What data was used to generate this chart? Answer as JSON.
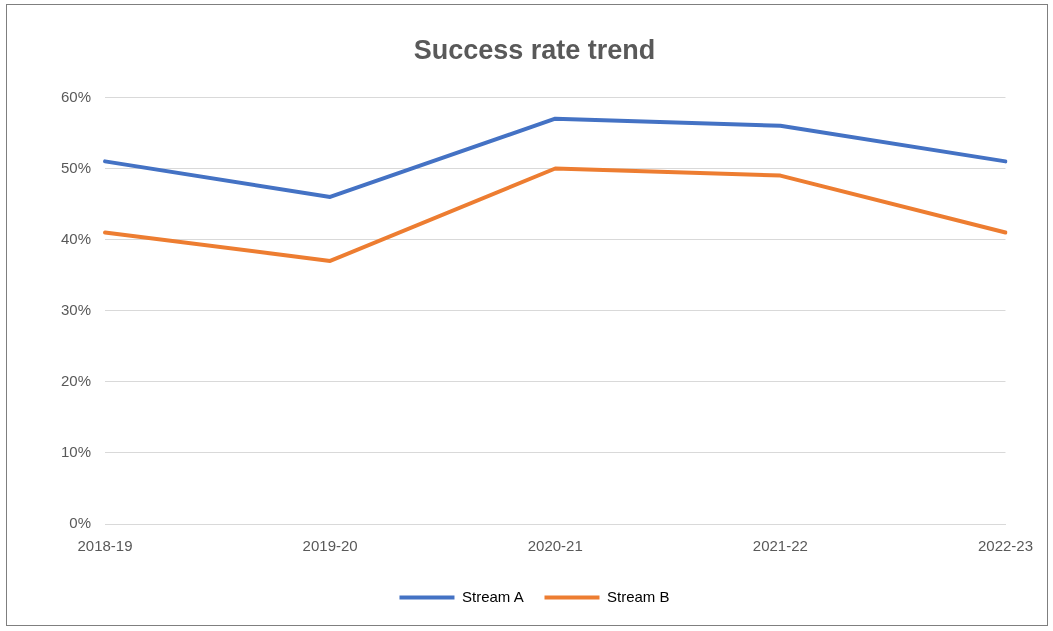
{
  "chart_data": {
    "type": "line",
    "title": "Success rate trend",
    "categories": [
      "2018-19",
      "2019-20",
      "2020-21",
      "2021-22",
      "2022-23"
    ],
    "series": [
      {
        "name": "Stream A",
        "color": "#4472c4",
        "values": [
          51,
          46,
          57,
          56,
          51
        ]
      },
      {
        "name": "Stream B",
        "color": "#ed7d31",
        "values": [
          41,
          37,
          50,
          49,
          41
        ]
      }
    ],
    "ylim": [
      0,
      60
    ],
    "yticks": [
      {
        "value": 0,
        "label": "0%"
      },
      {
        "value": 10,
        "label": "10%"
      },
      {
        "value": 20,
        "label": "20%"
      },
      {
        "value": 30,
        "label": "30%"
      },
      {
        "value": 40,
        "label": "40%"
      },
      {
        "value": 50,
        "label": "50%"
      },
      {
        "value": 60,
        "label": "60%"
      }
    ],
    "grid": "y",
    "legend": "bottom",
    "marker": "none",
    "line_style": "solid"
  }
}
